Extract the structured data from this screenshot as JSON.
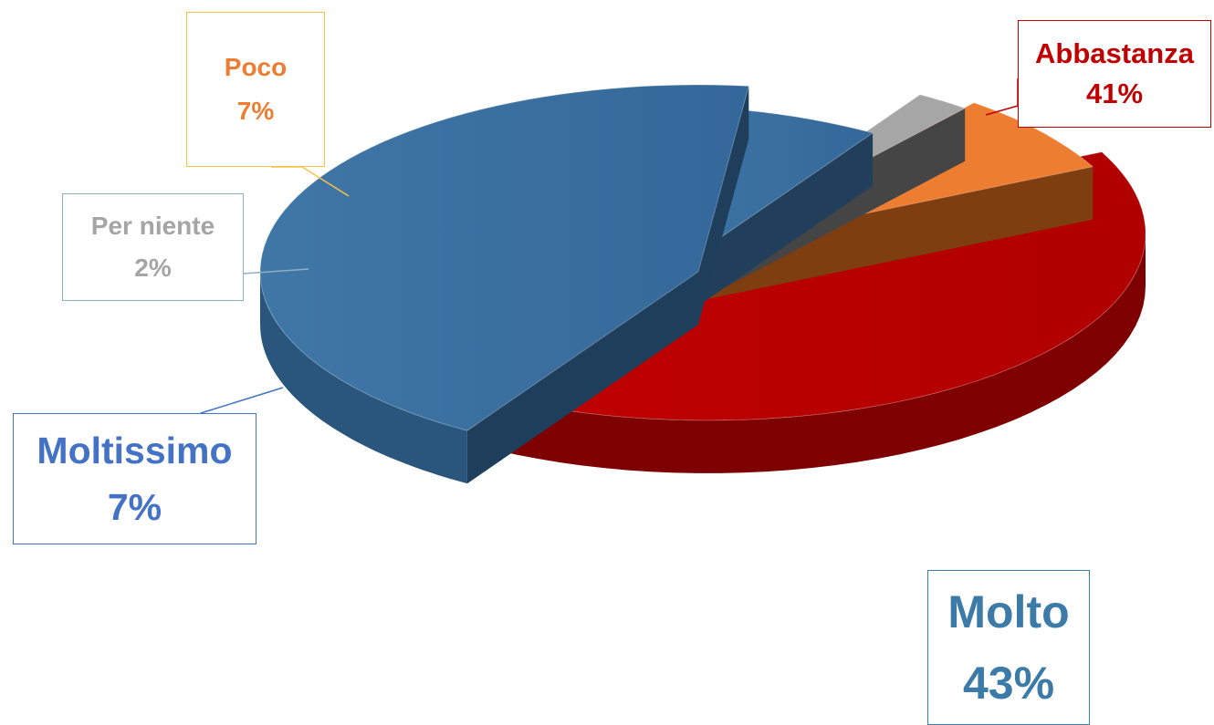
{
  "chart_data": {
    "type": "pie",
    "title": "",
    "style": "3d-exploded",
    "slices": [
      {
        "label": "Abbastanza",
        "value": 41,
        "value_label": "41%",
        "color": "#c00000"
      },
      {
        "label": "Molto",
        "value": 43,
        "value_label": "43%",
        "color": "#3c73a0"
      },
      {
        "label": "Moltissimo",
        "value": 7,
        "value_label": "7%",
        "color": "#3c73a0"
      },
      {
        "label": "Per niente",
        "value": 2,
        "value_label": "2%",
        "color": "#a6a6a6"
      },
      {
        "label": "Poco",
        "value": 7,
        "value_label": "7%",
        "color": "#ed7d31"
      }
    ],
    "label_colors": {
      "Abbastanza": "#c00000",
      "Molto": "#3c7aa8",
      "Moltissimo": "#4472c4",
      "Per niente": "#a5a5a5",
      "Poco": "#ed7d31"
    }
  }
}
